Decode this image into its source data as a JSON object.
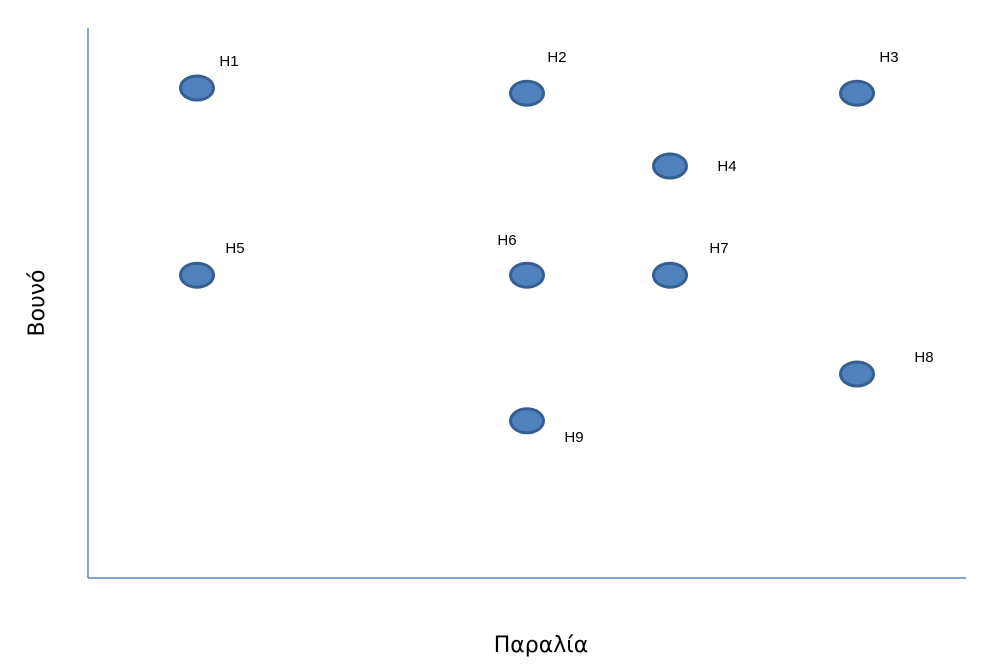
{
  "chart_data": {
    "type": "scatter",
    "xlabel": "Παραλία",
    "ylabel": "Βουνό",
    "grid": false,
    "colors": {
      "marker_fill": "#4f81bd",
      "marker_edge": "#365f91",
      "axis": "#5b87c7"
    },
    "points": [
      {
        "label": "H1",
        "x": 1.0,
        "y": 9.0
      },
      {
        "label": "H2",
        "x": 4.0,
        "y": 8.9
      },
      {
        "label": "H3",
        "x": 7.0,
        "y": 8.9
      },
      {
        "label": "H4",
        "x": 5.3,
        "y": 7.5
      },
      {
        "label": "H5",
        "x": 1.0,
        "y": 5.4
      },
      {
        "label": "H6",
        "x": 4.0,
        "y": 5.4
      },
      {
        "label": "H7",
        "x": 5.3,
        "y": 5.4
      },
      {
        "label": "H8",
        "x": 7.0,
        "y": 3.5
      },
      {
        "label": "H9",
        "x": 4.0,
        "y": 2.6
      }
    ]
  }
}
